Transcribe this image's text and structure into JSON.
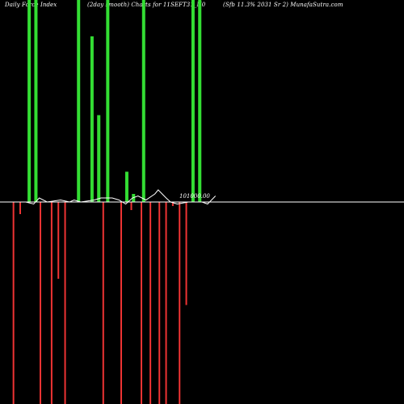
{
  "header": {
    "left": "Daily Force  Index",
    "middle": "(2day smooth) Charts for 11SEFT31_N0",
    "right": "(Sfb 11.3% 2031 Sr 2) MunafaSutra.com"
  },
  "colors": {
    "up": "#33dd33",
    "down": "#ee3333",
    "baseline": "#ffffff",
    "background": "#000000"
  },
  "chart_data": {
    "type": "bar",
    "title": "",
    "price_label": "101000.00",
    "bars_up": [
      {
        "x": 0.0,
        "v": 100
      },
      {
        "x": 0.6,
        "v": 100
      },
      {
        "x": 4.4,
        "v": 100
      },
      {
        "x": 5.6,
        "v": 82
      },
      {
        "x": 6.2,
        "v": 43
      },
      {
        "x": 7.0,
        "v": 100
      },
      {
        "x": 8.7,
        "v": 15
      },
      {
        "x": 9.3,
        "v": 4
      },
      {
        "x": 10.2,
        "v": 100
      },
      {
        "x": 14.6,
        "v": 100
      },
      {
        "x": 15.2,
        "v": 100
      }
    ],
    "bars_down": [
      {
        "x": -1.4,
        "v": 100
      },
      {
        "x": -0.8,
        "v": 6
      },
      {
        "x": 1.0,
        "v": 100
      },
      {
        "x": 2.0,
        "v": 100
      },
      {
        "x": 2.6,
        "v": 38
      },
      {
        "x": 3.2,
        "v": 100
      },
      {
        "x": 6.6,
        "v": 100
      },
      {
        "x": 8.2,
        "v": 100
      },
      {
        "x": 9.1,
        "v": 4
      },
      {
        "x": 10.0,
        "v": 100
      },
      {
        "x": 10.8,
        "v": 100
      },
      {
        "x": 11.6,
        "v": 100
      },
      {
        "x": 12.2,
        "v": 100
      },
      {
        "x": 12.8,
        "v": 2
      },
      {
        "x": 13.4,
        "v": 100
      },
      {
        "x": 14.0,
        "v": 51
      }
    ],
    "line": [
      {
        "x": -2.6,
        "v": 0
      },
      {
        "x": -0.3,
        "v": 0
      },
      {
        "x": 0.4,
        "v": -1
      },
      {
        "x": 0.9,
        "v": 2
      },
      {
        "x": 1.6,
        "v": 0
      },
      {
        "x": 2.8,
        "v": 1
      },
      {
        "x": 3.6,
        "v": 0
      },
      {
        "x": 4.0,
        "v": 1
      },
      {
        "x": 4.6,
        "v": 0
      },
      {
        "x": 5.8,
        "v": 1
      },
      {
        "x": 6.4,
        "v": 2
      },
      {
        "x": 7.4,
        "v": 2
      },
      {
        "x": 8.0,
        "v": 1
      },
      {
        "x": 8.6,
        "v": -1
      },
      {
        "x": 9.2,
        "v": 2
      },
      {
        "x": 9.7,
        "v": 3
      },
      {
        "x": 10.4,
        "v": 1
      },
      {
        "x": 11.2,
        "v": 4
      },
      {
        "x": 11.5,
        "v": 6
      },
      {
        "x": 12.2,
        "v": 2
      },
      {
        "x": 12.6,
        "v": 0
      },
      {
        "x": 13.2,
        "v": -1
      },
      {
        "x": 14.2,
        "v": 0
      },
      {
        "x": 15.4,
        "v": 0
      },
      {
        "x": 15.9,
        "v": -1
      },
      {
        "x": 16.6,
        "v": 3
      }
    ],
    "baseline_value": 0,
    "ylim": [
      -100,
      100
    ],
    "xlim": [
      -2.6,
      33.4
    ],
    "grid": false
  }
}
